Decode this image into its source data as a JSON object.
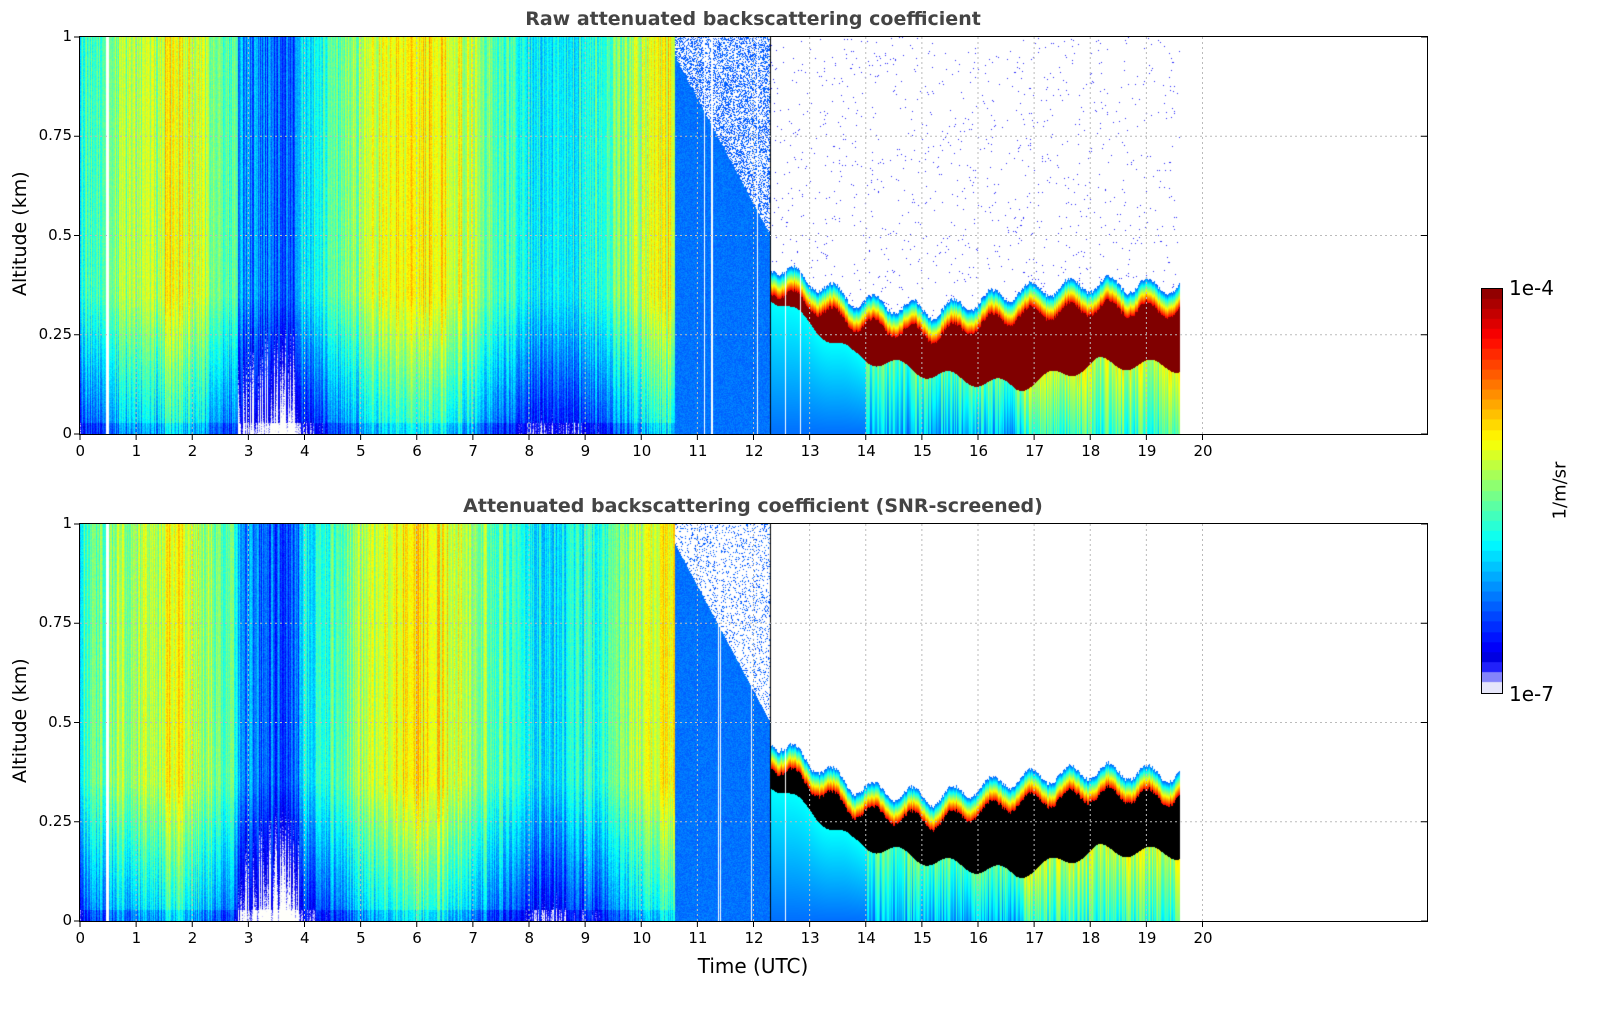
{
  "chart_data": [
    {
      "type": "heatmap",
      "title": "Raw attenuated backscattering coefficient",
      "xlabel": "",
      "ylabel": "Altitude (km)",
      "xlim": [
        0,
        24
      ],
      "ylim": [
        0,
        1
      ],
      "x_ticks": [
        "0",
        "1",
        "2",
        "3",
        "4",
        "5",
        "6",
        "7",
        "8",
        "9",
        "10",
        "11",
        "12",
        "13",
        "14",
        "15",
        "16",
        "17",
        "18",
        "19",
        "20"
      ],
      "y_ticks": [
        "0",
        "0.25",
        "0.5",
        "0.75",
        "1"
      ],
      "grid": true,
      "data_end_hour": 19.6,
      "clear_sky_start_hour": 10.6,
      "cloud_layer": {
        "start_hour": 12.3,
        "top_km": [
          0.42,
          0.33,
          0.3,
          0.35,
          0.37,
          0.36
        ],
        "base_km": [
          0.35,
          0.2,
          0.15,
          0.12,
          0.18,
          0.17
        ],
        "screened_saturated": false
      },
      "colorbar": {
        "label": "1/m/sr",
        "min_label": "1e-7",
        "max_label": "1e-4",
        "scale": "log",
        "colormap": "jet"
      }
    },
    {
      "type": "heatmap",
      "title": "Attenuated backscattering coefficient (SNR-screened)",
      "xlabel": "Time (UTC)",
      "ylabel": "Altitude (km)",
      "xlim": [
        0,
        24
      ],
      "ylim": [
        0,
        1
      ],
      "x_ticks": [
        "0",
        "1",
        "2",
        "3",
        "4",
        "5",
        "6",
        "7",
        "8",
        "9",
        "10",
        "11",
        "12",
        "13",
        "14",
        "15",
        "16",
        "17",
        "18",
        "19",
        "20"
      ],
      "y_ticks": [
        "0",
        "0.25",
        "0.5",
        "0.75",
        "1"
      ],
      "grid": true,
      "data_end_hour": 19.6,
      "clear_sky_start_hour": 10.6,
      "cloud_layer": {
        "start_hour": 12.3,
        "top_km": [
          0.45,
          0.33,
          0.3,
          0.35,
          0.37,
          0.36
        ],
        "base_km": [
          0.35,
          0.2,
          0.15,
          0.12,
          0.18,
          0.17
        ],
        "screened_saturated": true
      },
      "colorbar": {
        "label": "1/m/sr",
        "min_label": "1e-7",
        "max_label": "1e-4",
        "scale": "log",
        "colormap": "jet"
      }
    }
  ],
  "colorbar": {
    "label": "1/m/sr",
    "max_label": "1e-4",
    "min_label": "1e-7"
  }
}
